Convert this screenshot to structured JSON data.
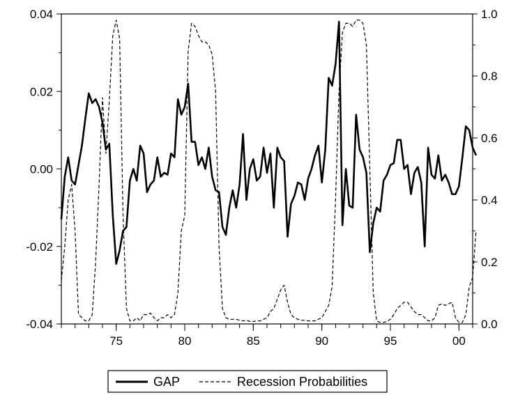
{
  "chart_data": {
    "type": "line",
    "title": "",
    "xlabel": "",
    "ylabel": "",
    "grid": false,
    "legend_position": "bottom-center",
    "x_range": [
      1971.0,
      2001.0
    ],
    "xticks": [
      {
        "value": 1975,
        "label": "75"
      },
      {
        "value": 1980,
        "label": "80"
      },
      {
        "value": 1985,
        "label": "85"
      },
      {
        "value": 1990,
        "label": "90"
      },
      {
        "value": 1995,
        "label": "95"
      },
      {
        "value": 2000,
        "label": "00"
      }
    ],
    "y_left": {
      "range": [
        -0.04,
        0.04
      ],
      "ticks": [
        {
          "value": -0.04,
          "label": "-0.04"
        },
        {
          "value": -0.02,
          "label": "-0.02"
        },
        {
          "value": 0.0,
          "label": "0.00"
        },
        {
          "value": 0.02,
          "label": "0.02"
        },
        {
          "value": 0.04,
          "label": "0.04"
        }
      ]
    },
    "y_right": {
      "range": [
        0.0,
        1.0
      ],
      "ticks": [
        {
          "value": 0.0,
          "label": "0.0"
        },
        {
          "value": 0.2,
          "label": "0.2"
        },
        {
          "value": 0.4,
          "label": "0.4"
        },
        {
          "value": 0.6,
          "label": "0.6"
        },
        {
          "value": 0.8,
          "label": "0.8"
        },
        {
          "value": 1.0,
          "label": "1.0"
        }
      ]
    },
    "series": [
      {
        "name": "GAP",
        "axis": "left",
        "color": "#000000",
        "style": "solid",
        "points": [
          [
            1971.0,
            -0.013
          ],
          [
            1971.25,
            -0.002
          ],
          [
            1971.5,
            0.003
          ],
          [
            1971.75,
            -0.003
          ],
          [
            1972.0,
            -0.004
          ],
          [
            1972.25,
            0.001
          ],
          [
            1972.5,
            0.006
          ],
          [
            1972.75,
            0.013
          ],
          [
            1973.0,
            0.0195
          ],
          [
            1973.25,
            0.017
          ],
          [
            1973.5,
            0.018
          ],
          [
            1973.75,
            0.016
          ],
          [
            1974.0,
            0.012
          ],
          [
            1974.25,
            0.005
          ],
          [
            1974.5,
            0.0065
          ],
          [
            1974.75,
            -0.012
          ],
          [
            1975.0,
            -0.0245
          ],
          [
            1975.25,
            -0.021
          ],
          [
            1975.5,
            -0.016
          ],
          [
            1975.75,
            -0.015
          ],
          [
            1976.0,
            -0.003
          ],
          [
            1976.25,
            0.0
          ],
          [
            1976.5,
            -0.003
          ],
          [
            1976.75,
            0.006
          ],
          [
            1977.0,
            0.004
          ],
          [
            1977.25,
            -0.006
          ],
          [
            1977.5,
            -0.004
          ],
          [
            1977.75,
            -0.003
          ],
          [
            1978.0,
            0.003
          ],
          [
            1978.25,
            -0.002
          ],
          [
            1978.5,
            -0.001
          ],
          [
            1978.75,
            -0.0015
          ],
          [
            1979.0,
            0.004
          ],
          [
            1979.25,
            0.003
          ],
          [
            1979.5,
            0.018
          ],
          [
            1979.75,
            0.014
          ],
          [
            1980.0,
            0.016
          ],
          [
            1980.25,
            0.022
          ],
          [
            1980.5,
            0.007
          ],
          [
            1980.75,
            0.007
          ],
          [
            1981.0,
            0.001
          ],
          [
            1981.25,
            0.003
          ],
          [
            1981.5,
            0.0
          ],
          [
            1981.75,
            0.0055
          ],
          [
            1982.0,
            -0.002
          ],
          [
            1982.25,
            -0.0055
          ],
          [
            1982.5,
            -0.006
          ],
          [
            1982.75,
            -0.015
          ],
          [
            1983.0,
            -0.017
          ],
          [
            1983.25,
            -0.01
          ],
          [
            1983.5,
            -0.0055
          ],
          [
            1983.75,
            -0.01
          ],
          [
            1984.0,
            -0.004
          ],
          [
            1984.25,
            0.009
          ],
          [
            1984.5,
            -0.008
          ],
          [
            1984.75,
            0.0
          ],
          [
            1985.0,
            0.0025
          ],
          [
            1985.25,
            -0.003
          ],
          [
            1985.5,
            -0.002
          ],
          [
            1985.75,
            0.0055
          ],
          [
            1986.0,
            -0.001
          ],
          [
            1986.25,
            0.004
          ],
          [
            1986.5,
            -0.01
          ],
          [
            1986.75,
            0.0055
          ],
          [
            1987.0,
            0.003
          ],
          [
            1987.25,
            0.002
          ],
          [
            1987.5,
            -0.0175
          ],
          [
            1987.75,
            -0.009
          ],
          [
            1988.0,
            -0.007
          ],
          [
            1988.25,
            -0.0035
          ],
          [
            1988.5,
            -0.004
          ],
          [
            1988.75,
            -0.008
          ],
          [
            1989.0,
            -0.0025
          ],
          [
            1989.25,
            0.0
          ],
          [
            1989.5,
            0.0035
          ],
          [
            1989.75,
            0.006
          ],
          [
            1990.0,
            -0.0035
          ],
          [
            1990.25,
            0.005
          ],
          [
            1990.5,
            0.0235
          ],
          [
            1990.75,
            0.0215
          ],
          [
            1991.0,
            0.027
          ],
          [
            1991.25,
            0.038
          ],
          [
            1991.5,
            -0.0145
          ],
          [
            1991.75,
            0.0
          ],
          [
            1992.0,
            -0.0095
          ],
          [
            1992.25,
            -0.01
          ],
          [
            1992.5,
            0.014
          ],
          [
            1992.75,
            0.005
          ],
          [
            1993.0,
            0.003
          ],
          [
            1993.25,
            -0.001
          ],
          [
            1993.5,
            -0.0215
          ],
          [
            1993.75,
            -0.014
          ],
          [
            1994.0,
            -0.01
          ],
          [
            1994.25,
            -0.011
          ],
          [
            1994.5,
            -0.003
          ],
          [
            1994.75,
            -0.0015
          ],
          [
            1995.0,
            0.001
          ],
          [
            1995.25,
            0.0015
          ],
          [
            1995.5,
            0.0075
          ],
          [
            1995.75,
            0.0075
          ],
          [
            1996.0,
            0.0
          ],
          [
            1996.25,
            0.001
          ],
          [
            1996.5,
            -0.0065
          ],
          [
            1996.75,
            -0.001
          ],
          [
            1997.0,
            0.0005
          ],
          [
            1997.25,
            -0.0035
          ],
          [
            1997.5,
            -0.02
          ],
          [
            1997.75,
            0.0055
          ],
          [
            1998.0,
            -0.0015
          ],
          [
            1998.25,
            -0.0025
          ],
          [
            1998.5,
            0.0035
          ],
          [
            1998.75,
            -0.003
          ],
          [
            1999.0,
            -0.0015
          ],
          [
            1999.25,
            -0.0035
          ],
          [
            1999.5,
            -0.0065
          ],
          [
            1999.75,
            -0.0065
          ],
          [
            2000.0,
            -0.0045
          ],
          [
            2000.25,
            0.003
          ],
          [
            2000.5,
            0.011
          ],
          [
            2000.75,
            0.01
          ],
          [
            2001.0,
            0.0055
          ],
          [
            2001.25,
            0.0035
          ]
        ]
      },
      {
        "name": "Recession Probabilities",
        "axis": "right",
        "color": "#000000",
        "style": "dashed",
        "points": [
          [
            1971.0,
            0.14
          ],
          [
            1971.25,
            0.25
          ],
          [
            1971.5,
            0.4
          ],
          [
            1971.75,
            0.45
          ],
          [
            1972.0,
            0.3
          ],
          [
            1972.25,
            0.03
          ],
          [
            1972.5,
            0.02
          ],
          [
            1972.75,
            0.01
          ],
          [
            1973.0,
            0.01
          ],
          [
            1973.25,
            0.03
          ],
          [
            1973.5,
            0.2
          ],
          [
            1973.75,
            0.45
          ],
          [
            1974.0,
            0.73
          ],
          [
            1974.25,
            0.55
          ],
          [
            1974.5,
            0.72
          ],
          [
            1974.75,
            0.93
          ],
          [
            1975.0,
            0.98
          ],
          [
            1975.25,
            0.92
          ],
          [
            1975.5,
            0.35
          ],
          [
            1975.75,
            0.05
          ],
          [
            1976.0,
            0.01
          ],
          [
            1976.25,
            0.01
          ],
          [
            1976.5,
            0.02
          ],
          [
            1976.75,
            0.01
          ],
          [
            1977.0,
            0.03
          ],
          [
            1977.25,
            0.03
          ],
          [
            1977.5,
            0.035
          ],
          [
            1977.75,
            0.02
          ],
          [
            1978.0,
            0.01
          ],
          [
            1978.25,
            0.02
          ],
          [
            1978.5,
            0.02
          ],
          [
            1978.75,
            0.03
          ],
          [
            1979.0,
            0.02
          ],
          [
            1979.25,
            0.03
          ],
          [
            1979.5,
            0.1
          ],
          [
            1979.75,
            0.3
          ],
          [
            1980.0,
            0.35
          ],
          [
            1980.25,
            0.88
          ],
          [
            1980.5,
            0.97
          ],
          [
            1980.75,
            0.96
          ],
          [
            1981.0,
            0.93
          ],
          [
            1981.25,
            0.91
          ],
          [
            1981.5,
            0.91
          ],
          [
            1981.75,
            0.9
          ],
          [
            1982.0,
            0.87
          ],
          [
            1982.25,
            0.75
          ],
          [
            1982.5,
            0.25
          ],
          [
            1982.75,
            0.05
          ],
          [
            1983.0,
            0.02
          ],
          [
            1983.25,
            0.015
          ],
          [
            1983.5,
            0.015
          ],
          [
            1983.75,
            0.015
          ],
          [
            1984.0,
            0.012
          ],
          [
            1984.25,
            0.01
          ],
          [
            1984.5,
            0.012
          ],
          [
            1984.75,
            0.008
          ],
          [
            1985.0,
            0.008
          ],
          [
            1985.25,
            0.01
          ],
          [
            1985.5,
            0.01
          ],
          [
            1985.75,
            0.015
          ],
          [
            1986.0,
            0.02
          ],
          [
            1986.25,
            0.04
          ],
          [
            1986.5,
            0.05
          ],
          [
            1986.75,
            0.08
          ],
          [
            1987.0,
            0.11
          ],
          [
            1987.25,
            0.125
          ],
          [
            1987.5,
            0.07
          ],
          [
            1987.75,
            0.03
          ],
          [
            1988.0,
            0.02
          ],
          [
            1988.25,
            0.015
          ],
          [
            1988.5,
            0.012
          ],
          [
            1988.75,
            0.012
          ],
          [
            1989.0,
            0.01
          ],
          [
            1989.25,
            0.01
          ],
          [
            1989.5,
            0.01
          ],
          [
            1989.75,
            0.015
          ],
          [
            1990.0,
            0.02
          ],
          [
            1990.25,
            0.04
          ],
          [
            1990.5,
            0.06
          ],
          [
            1990.75,
            0.12
          ],
          [
            1991.0,
            0.4
          ],
          [
            1991.25,
            0.75
          ],
          [
            1991.5,
            0.94
          ],
          [
            1991.75,
            0.97
          ],
          [
            1992.0,
            0.97
          ],
          [
            1992.25,
            0.96
          ],
          [
            1992.5,
            0.98
          ],
          [
            1992.75,
            0.98
          ],
          [
            1993.0,
            0.97
          ],
          [
            1993.25,
            0.9
          ],
          [
            1993.5,
            0.5
          ],
          [
            1993.75,
            0.1
          ],
          [
            1994.0,
            0.01
          ],
          [
            1994.25,
            0.005
          ],
          [
            1994.5,
            0.005
          ],
          [
            1994.75,
            0.008
          ],
          [
            1995.0,
            0.015
          ],
          [
            1995.25,
            0.03
          ],
          [
            1995.5,
            0.05
          ],
          [
            1995.75,
            0.06
          ],
          [
            1996.0,
            0.07
          ],
          [
            1996.25,
            0.07
          ],
          [
            1996.5,
            0.055
          ],
          [
            1996.75,
            0.04
          ],
          [
            1997.0,
            0.03
          ],
          [
            1997.25,
            0.03
          ],
          [
            1997.5,
            0.02
          ],
          [
            1997.75,
            0.01
          ],
          [
            1998.0,
            0.01
          ],
          [
            1998.25,
            0.02
          ],
          [
            1998.5,
            0.06
          ],
          [
            1998.75,
            0.065
          ],
          [
            1999.0,
            0.06
          ],
          [
            1999.25,
            0.065
          ],
          [
            1999.5,
            0.07
          ],
          [
            1999.75,
            0.02
          ],
          [
            2000.0,
            0.005
          ],
          [
            2000.25,
            0.005
          ],
          [
            2000.5,
            0.03
          ],
          [
            2000.75,
            0.12
          ],
          [
            2001.0,
            0.15
          ],
          [
            2001.25,
            0.3
          ]
        ]
      }
    ]
  }
}
